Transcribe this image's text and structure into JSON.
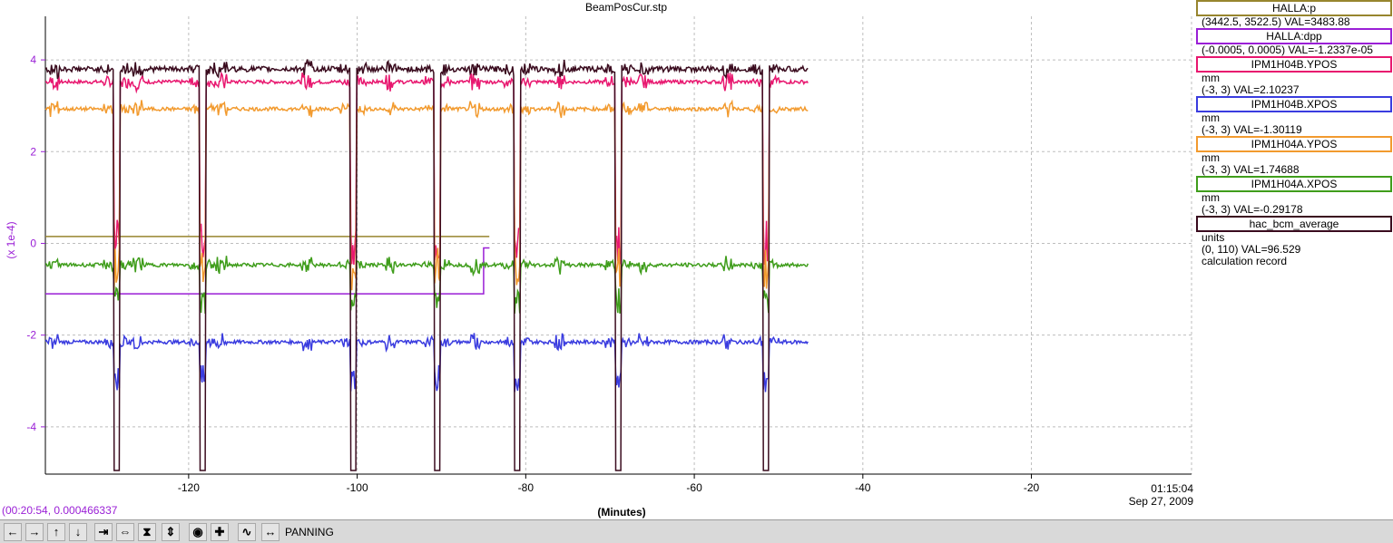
{
  "chart_data": {
    "type": "line",
    "title": "BeamPosCur.stp",
    "xlabel": "(Minutes)",
    "ylabel": "(x 1e-4)",
    "xlim": [
      -137,
      -1
    ],
    "ylim": [
      -5.03,
      4.95
    ],
    "x_ticks": [
      "-120",
      "-100",
      "-80",
      "-60",
      "-40",
      "-20"
    ],
    "x_tick_values": [
      -120,
      -100,
      -80,
      -60,
      -40,
      -20
    ],
    "y_ticks": [
      "4",
      "2",
      "0",
      "-2",
      "-4"
    ],
    "y_tick_values": [
      4,
      2,
      0,
      -2,
      -4
    ],
    "end_time": "01:15:04",
    "end_date": "Sep 27, 2009",
    "cursor_readout": "(00:20:54, 0.000466337",
    "grid": true,
    "data_end_x": -46.5,
    "beam_trips": [
      -128.5,
      -118.3,
      -100.5,
      -90.5,
      -81,
      -69,
      -51.5
    ],
    "series": [
      {
        "name": "HALLA:p",
        "color": "#97852e",
        "level": 0.15,
        "end_x": -84.3
      },
      {
        "name": "HALLA:dpp",
        "color": "#9a1fd6",
        "level": -1.1,
        "step_x": -85,
        "step_level": -0.1,
        "end_x": -84.3
      },
      {
        "name": "IPM1H04B.YPOS",
        "color": "#e8176f",
        "level": 3.52
      },
      {
        "name": "IPM1H04B.XPOS",
        "color": "#3a3cdf",
        "level": -2.15
      },
      {
        "name": "IPM1H04A.YPOS",
        "color": "#f29a2e",
        "level": 2.93
      },
      {
        "name": "IPM1H04A.XPOS",
        "color": "#3f9d1b",
        "level": -0.47
      },
      {
        "name": "hac_bcm_average",
        "color": "#3a0b1e",
        "level": 3.8,
        "trip_level": -4.95
      }
    ]
  },
  "legend": [
    {
      "name": "HALLA:p",
      "color": "#97852e",
      "lines": [
        "(3442.5, 3522.5) VAL=3483.88"
      ]
    },
    {
      "name": "HALLA:dpp",
      "color": "#9a1fd6",
      "lines": [
        "(-0.0005, 0.0005) VAL=-1.2337e-05"
      ]
    },
    {
      "name": "IPM1H04B.YPOS",
      "color": "#e8176f",
      "lines": [
        "mm",
        "(-3, 3) VAL=2.10237"
      ]
    },
    {
      "name": "IPM1H04B.XPOS",
      "color": "#3a3cdf",
      "lines": [
        "mm",
        "(-3, 3) VAL=-1.30119"
      ]
    },
    {
      "name": "IPM1H04A.YPOS",
      "color": "#f29a2e",
      "lines": [
        "mm",
        "(-3, 3) VAL=1.74688"
      ]
    },
    {
      "name": "IPM1H04A.XPOS",
      "color": "#3f9d1b",
      "lines": [
        "mm",
        "(-3, 3) VAL=-0.29178"
      ]
    },
    {
      "name": "hac_bcm_average",
      "color": "#3a0b1e",
      "lines": [
        "units",
        "(0, 110) VAL=96.529",
        "calculation record"
      ]
    }
  ],
  "toolbar": {
    "buttons": [
      "arrow-left-icon",
      "arrow-right-icon",
      "arrow-up-icon",
      "arrow-down-icon",
      "compress-horizontal-icon",
      "expand-horizontal-icon",
      "compress-vertical-icon",
      "expand-vertical-icon",
      "zoom-reset-icon",
      "add-icon",
      "autoscale-icon",
      "pan-icon"
    ],
    "mode_label": "PANNING"
  }
}
